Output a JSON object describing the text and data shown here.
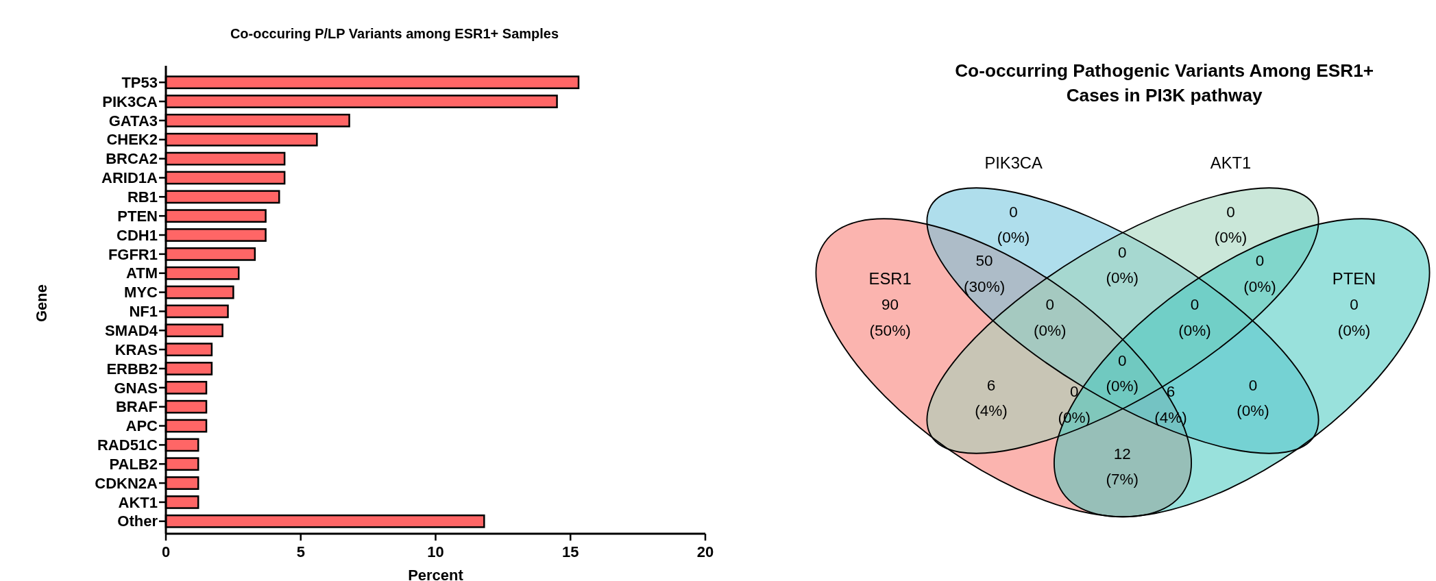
{
  "chart_data": [
    {
      "type": "bar",
      "orientation": "horizontal",
      "title": "Co-occuring P/LP Variants among ESR1+ Samples",
      "xlabel": "Percent",
      "ylabel": "Gene",
      "categories": [
        "TP53",
        "PIK3CA",
        "GATA3",
        "CHEK2",
        "BRCA2",
        "ARID1A",
        "RB1",
        "PTEN",
        "CDH1",
        "FGFR1",
        "ATM",
        "MYC",
        "NF1",
        "SMAD4",
        "KRAS",
        "ERBB2",
        "GNAS",
        "BRAF",
        "APC",
        "RAD51C",
        "PALB2",
        "CDKN2A",
        "AKT1",
        "Other"
      ],
      "values": [
        15.3,
        14.5,
        6.8,
        5.6,
        4.4,
        4.4,
        4.2,
        3.7,
        3.7,
        3.3,
        2.7,
        2.5,
        2.3,
        2.1,
        1.7,
        1.7,
        1.5,
        1.5,
        1.5,
        1.2,
        1.2,
        1.2,
        1.2,
        11.8
      ],
      "color": "#ff6666",
      "xlim": [
        0,
        20
      ],
      "xticks": [
        0,
        5,
        10,
        15,
        20
      ],
      "grid": false
    },
    {
      "type": "other",
      "title": "Co-occurring Pathogenic Variants Among ESR1+ Cases in PI3K pathway",
      "categories": [
        "ESR1",
        "PIK3CA",
        "AKT1",
        "PTEN"
      ],
      "colors": [
        "#f8766d",
        "#6ec3dc",
        "#9fd3b9",
        "#45c9bf"
      ],
      "annotations": [
        "90 (50%)",
        "0 (0%)",
        "0 (0%)",
        "0 (0%)",
        "50 (30%)",
        "0 (0%)",
        "0 (0%)",
        "0 (0%)",
        "0 (0%)",
        "0 (0%)",
        "6 (4%)",
        "0 (0%)",
        "0 (0%)",
        "6 (4%)",
        "12 (7%)"
      ]
    }
  ]
}
